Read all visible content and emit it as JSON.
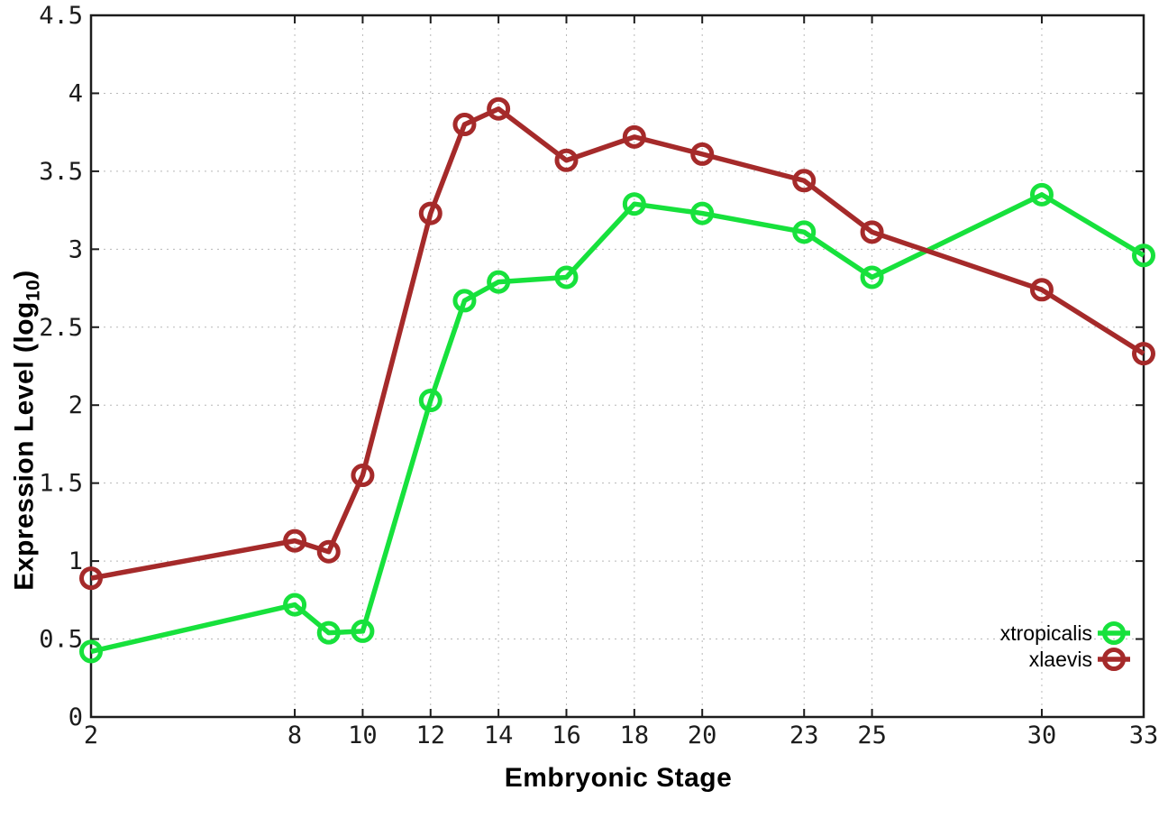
{
  "chart_data": {
    "type": "line",
    "title": "",
    "xlabel": "Embryonic Stage",
    "ylabel": {
      "main": "Expression Level (log",
      "sub": "10",
      "end": ")"
    },
    "xlim": [
      2,
      33
    ],
    "ylim": [
      0,
      4.5
    ],
    "grid": true,
    "legend_position": "bottom-right",
    "x": [
      2,
      8,
      9,
      10,
      12,
      13,
      14,
      16,
      18,
      20,
      23,
      25,
      30,
      33
    ],
    "xticks": {
      "values": [
        2,
        8,
        10,
        12,
        14,
        16,
        18,
        20,
        23,
        25,
        30,
        33
      ],
      "labels": [
        "2",
        "8",
        "10",
        "12",
        "14",
        "16",
        "18",
        "20",
        "23",
        "25",
        "30",
        "33"
      ]
    },
    "yticks": {
      "values": [
        0,
        0.5,
        1,
        1.5,
        2,
        2.5,
        3,
        3.5,
        4,
        4.5
      ],
      "labels": [
        "0",
        "0.5",
        "1",
        "1.5",
        "2",
        "2.5",
        "3",
        "3.5",
        "4",
        "4.5"
      ]
    },
    "series": [
      {
        "name": "xtropicalis",
        "color": "#17e13c",
        "values": [
          0.42,
          0.72,
          0.54,
          0.55,
          2.03,
          2.67,
          2.79,
          2.82,
          3.29,
          3.23,
          3.11,
          2.82,
          3.35,
          2.96
        ]
      },
      {
        "name": "xlaevis",
        "color": "#a52a2a",
        "values": [
          0.89,
          1.13,
          1.06,
          1.55,
          3.23,
          3.8,
          3.9,
          3.57,
          3.72,
          3.61,
          3.44,
          3.11,
          2.74,
          2.33
        ]
      }
    ],
    "style": {
      "background": "#ffffff",
      "axis_color": "#1c1c1c",
      "grid_color": "#b8b8b8",
      "text_color": "#1c1c1c",
      "marker": "open-circle",
      "marker_radius": 10.5,
      "marker_stroke": 5,
      "line_width": 5.5
    }
  }
}
